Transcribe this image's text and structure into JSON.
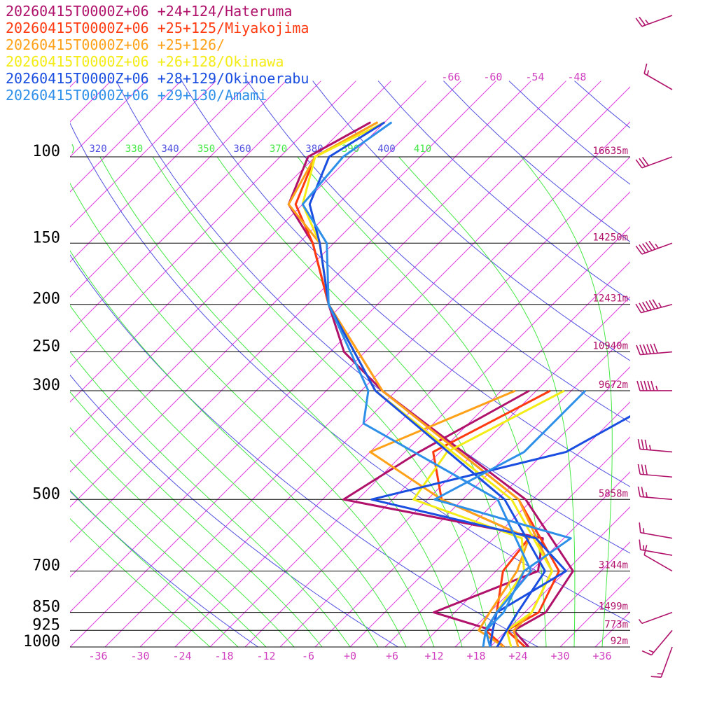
{
  "chart_data": {
    "type": "line",
    "title": "",
    "legend": [
      {
        "text": "20260415T0000Z+06 +24+124/Hateruma",
        "color": "#b0126b"
      },
      {
        "text": "20260415T0000Z+06 +25+125/Miyakojima",
        "color": "#ff3a10"
      },
      {
        "text": "20260415T0000Z+06 +25+126/",
        "color": "#ffa21a"
      },
      {
        "text": "20260415T0000Z+06 +26+128/Okinawa",
        "color": "#f4ec17"
      },
      {
        "text": "20260415T0000Z+06 +28+129/Okinoerabu",
        "color": "#1a4ee0"
      },
      {
        "text": "20260415T0000Z+06 +29+130/Amami",
        "color": "#2e8fe8"
      }
    ],
    "pressure_levels": [
      {
        "label": "100",
        "p": 100,
        "height": "16635m"
      },
      {
        "label": "150",
        "p": 150,
        "height": "14250m"
      },
      {
        "label": "200",
        "p": 200,
        "height": "12431m"
      },
      {
        "label": "250",
        "p": 250,
        "height": "10940m"
      },
      {
        "label": "300",
        "p": 300,
        "height": "9672m"
      },
      {
        "label": "500",
        "p": 500,
        "height": "5858m"
      },
      {
        "label": "700",
        "p": 700,
        "height": "3144m"
      },
      {
        "label": "850",
        "p": 850,
        "height": "1499m"
      },
      {
        "label": "925",
        "p": 925,
        "height": "773m"
      },
      {
        "label": "1000",
        "p": 1000,
        "height": "92m"
      }
    ],
    "x_tick_labels": [
      "-36",
      "-30",
      "-24",
      "-18",
      "-12",
      "-6",
      "+0",
      "+6",
      "+12",
      "+18",
      "+24",
      "+30",
      "+36"
    ],
    "isotherm_top_labels": [
      "-66",
      "-60",
      "-54",
      "-48"
    ],
    "theta_labels": [
      {
        "text": "320",
        "color": "#5050e0"
      },
      {
        "text": "330",
        "color": "#44e844"
      },
      {
        "text": "340",
        "color": "#5050e0"
      },
      {
        "text": "350",
        "color": "#44e844"
      },
      {
        "text": "360",
        "color": "#5050e0"
      },
      {
        "text": "370",
        "color": "#44e844"
      },
      {
        "text": "380",
        "color": "#5050e0"
      },
      {
        "text": "390",
        "color": "#44e844"
      },
      {
        "text": "400",
        "color": "#5050e0"
      },
      {
        "text": "410",
        "color": "#44e844"
      }
    ],
    "theta_label_partial": ")",
    "series": [
      {
        "name": "20260415T0000Z+06 +24+124/Hateruma",
        "temperature": [
          [
            1000,
            25.5
          ],
          [
            925,
            21
          ],
          [
            850,
            23
          ],
          [
            700,
            21
          ],
          [
            500,
            4
          ],
          [
            300,
            -32
          ],
          [
            250,
            -43
          ],
          [
            200,
            -52
          ],
          [
            150,
            -63
          ],
          [
            125,
            -72
          ],
          [
            100,
            -76
          ],
          [
            85,
            -72
          ]
        ],
        "dewpoint": [
          [
            1000,
            20
          ],
          [
            925,
            18
          ],
          [
            850,
            7
          ],
          [
            700,
            16
          ],
          [
            600,
            12
          ],
          [
            500,
            -22
          ],
          [
            400,
            -18
          ],
          [
            300,
            -11
          ]
        ]
      },
      {
        "name": "20260415T0000Z+06 +25+125/Miyakojima",
        "temperature": [
          [
            1000,
            25
          ],
          [
            925,
            20
          ],
          [
            850,
            22
          ],
          [
            700,
            19
          ],
          [
            500,
            3
          ],
          [
            300,
            -32
          ],
          [
            200,
            -52
          ],
          [
            150,
            -63
          ],
          [
            125,
            -71
          ],
          [
            100,
            -75
          ],
          [
            85,
            -71
          ]
        ],
        "dewpoint": [
          [
            1000,
            22
          ],
          [
            925,
            17
          ],
          [
            850,
            16
          ],
          [
            700,
            11
          ],
          [
            600,
            10
          ],
          [
            500,
            -8
          ],
          [
            400,
            -16
          ],
          [
            300,
            -8
          ]
        ]
      },
      {
        "name": "20260415T0000Z+06 +25+126/",
        "temperature": [
          [
            1000,
            24
          ],
          [
            925,
            21
          ],
          [
            850,
            21
          ],
          [
            700,
            18
          ],
          [
            500,
            3
          ],
          [
            300,
            -32
          ],
          [
            200,
            -52
          ],
          [
            150,
            -62
          ],
          [
            125,
            -72
          ],
          [
            100,
            -75
          ],
          [
            85,
            -71
          ]
        ],
        "dewpoint": [
          [
            1000,
            22
          ],
          [
            925,
            16
          ],
          [
            850,
            15
          ],
          [
            700,
            13
          ],
          [
            600,
            10
          ],
          [
            500,
            -8
          ],
          [
            400,
            -25
          ],
          [
            300,
            -13
          ]
        ]
      },
      {
        "name": "20260415T0000Z+06 +26+128/Okinawa",
        "temperature": [
          [
            1000,
            23
          ],
          [
            925,
            20
          ],
          [
            850,
            21
          ],
          [
            700,
            18
          ],
          [
            500,
            2
          ],
          [
            300,
            -33
          ],
          [
            200,
            -52
          ],
          [
            150,
            -62
          ],
          [
            125,
            -70
          ],
          [
            100,
            -75
          ],
          [
            85,
            -70
          ]
        ],
        "dewpoint": [
          [
            1000,
            20
          ],
          [
            925,
            18
          ],
          [
            850,
            16
          ],
          [
            700,
            14
          ],
          [
            600,
            9
          ],
          [
            500,
            -12
          ],
          [
            400,
            -14
          ],
          [
            300,
            -6
          ]
        ]
      },
      {
        "name": "20260415T0000Z+06 +28+129/Okinoerabu",
        "temperature": [
          [
            1000,
            21
          ],
          [
            925,
            20
          ],
          [
            850,
            19
          ],
          [
            700,
            17
          ],
          [
            500,
            1
          ],
          [
            300,
            -33
          ],
          [
            200,
            -52
          ],
          [
            150,
            -62
          ],
          [
            125,
            -69
          ],
          [
            100,
            -73
          ],
          [
            85,
            -70
          ]
        ],
        "dewpoint": [
          [
            1000,
            20
          ],
          [
            925,
            18
          ],
          [
            850,
            16
          ],
          [
            700,
            20
          ],
          [
            600,
            11
          ],
          [
            500,
            -18
          ],
          [
            400,
            3
          ],
          [
            300,
            10
          ]
        ]
      },
      {
        "name": "20260415T0000Z+06 +29+130/Amami",
        "temperature": [
          [
            1000,
            20
          ],
          [
            925,
            17
          ],
          [
            850,
            16
          ],
          [
            700,
            15
          ],
          [
            500,
            0
          ],
          [
            350,
            -30
          ],
          [
            300,
            -34
          ],
          [
            200,
            -52
          ],
          [
            150,
            -61
          ],
          [
            125,
            -70
          ],
          [
            100,
            -71
          ],
          [
            85,
            -69
          ]
        ],
        "dewpoint": [
          [
            1000,
            19
          ],
          [
            925,
            17
          ],
          [
            850,
            17
          ],
          [
            700,
            14
          ],
          [
            600,
            16
          ],
          [
            500,
            -9
          ],
          [
            400,
            -3
          ],
          [
            300,
            -3
          ]
        ]
      }
    ],
    "wind_barbs": [
      {
        "p": 70,
        "color": "#b0126b",
        "dir": 250,
        "speed": 25
      },
      {
        "p": 85,
        "color": "#b0126b",
        "dir": 300,
        "speed": 15
      },
      {
        "p": 100,
        "color": "#b0126b",
        "dir": 250,
        "speed": 30
      },
      {
        "p": 150,
        "color": "#b0126b",
        "dir": 250,
        "speed": 55
      },
      {
        "p": 200,
        "color": "#b0126b",
        "dir": 255,
        "speed": 65
      },
      {
        "p": 250,
        "color": "#b0126b",
        "dir": 265,
        "speed": 60
      },
      {
        "p": 300,
        "color": "#b0126b",
        "dir": 270,
        "speed": 55
      },
      {
        "p": 400,
        "color": "#b0126b",
        "dir": 275,
        "speed": 35
      },
      {
        "p": 450,
        "color": "#b0126b",
        "dir": 275,
        "speed": 30
      },
      {
        "p": 500,
        "color": "#b0126b",
        "dir": 275,
        "speed": 25
      },
      {
        "p": 600,
        "color": "#b0126b",
        "dir": 280,
        "speed": 15
      },
      {
        "p": 650,
        "color": "#b0126b",
        "dir": 280,
        "speed": 15
      },
      {
        "p": 700,
        "color": "#b0126b",
        "dir": 300,
        "speed": 10
      },
      {
        "p": 850,
        "color": "#b0126b",
        "dir": 250,
        "speed": 5
      },
      {
        "p": 925,
        "color": "#b0126b",
        "dir": 220,
        "speed": 15
      },
      {
        "p": 1000,
        "color": "#b0126b",
        "dir": 200,
        "speed": 15
      }
    ],
    "colors": {
      "isotherm": "#e040e0",
      "dry_adiabat": "#5050e0",
      "moist_adiabat": "#44e844",
      "isobar": "#000000",
      "label_text": "#d040c0",
      "height_text": "#b0126b"
    },
    "axes": {
      "temperature_range_at_1000": [
        -40,
        40
      ],
      "pressure_range": [
        100,
        1000
      ],
      "skewed": true,
      "log_pressure": true
    }
  }
}
